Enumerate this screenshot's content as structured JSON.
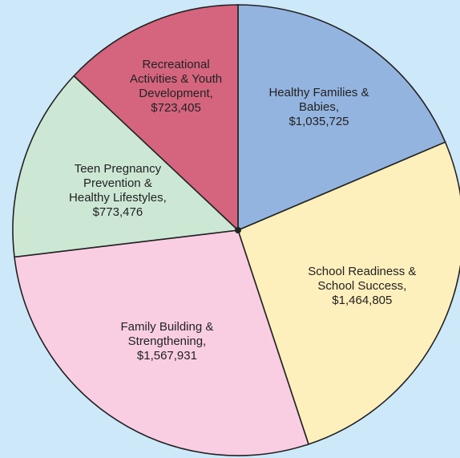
{
  "chart_data": {
    "type": "pie",
    "categories": [
      "Healthy Families & Babies,",
      "School Readiness & School Success,",
      "Family Building & Strengthening,",
      "Teen Pregnancy Prevention & Healthy Lifestyles,",
      "Recreational Activities & Youth Development,"
    ],
    "values": [
      1035725,
      1464805,
      1567931,
      773476,
      723405
    ],
    "value_labels": [
      "$1,035,725",
      "$1,464,805",
      "$1,567,931",
      "$773,476",
      "$723,405"
    ],
    "colors": [
      "#94b4e0",
      "#fdf0bd",
      "#f9cee3",
      "#cde7d5",
      "#d5657f"
    ]
  }
}
